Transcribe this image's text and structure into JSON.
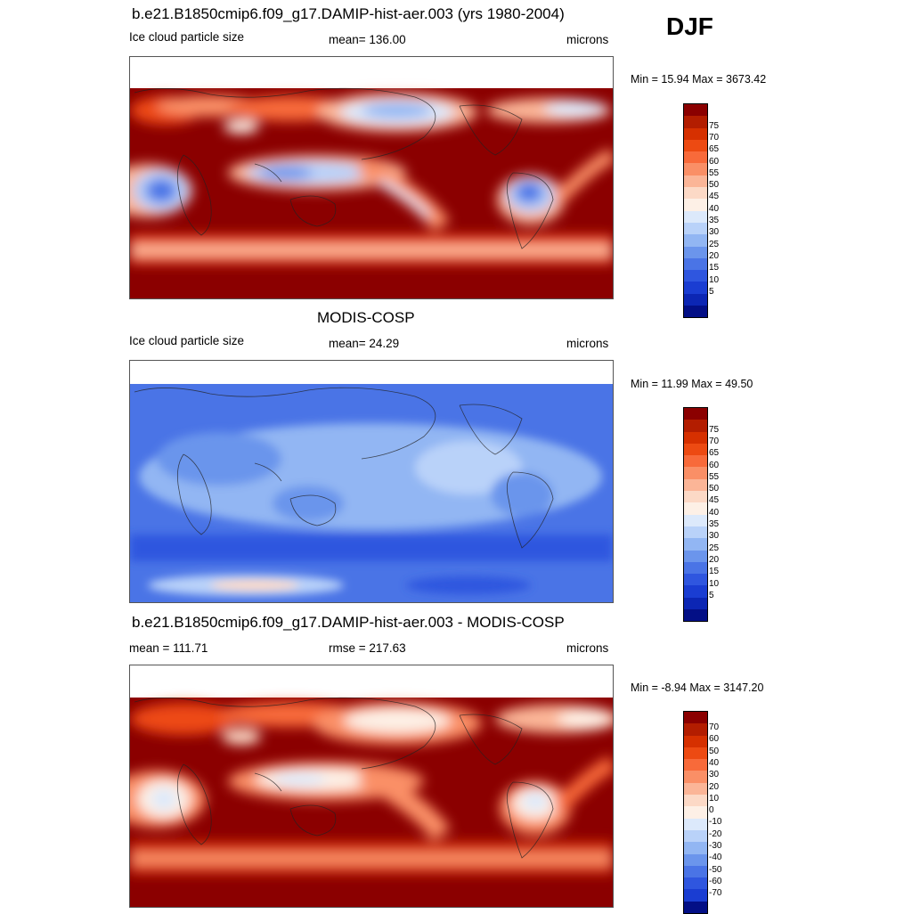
{
  "season": "DJF",
  "panels": [
    {
      "title": "b.e21.B1850cmip6.f09_g17.DAMIP-hist-aer.003 (yrs 1980-2004)",
      "left_label": "Ice cloud particle size",
      "center_label": "mean= 136.00",
      "units": "microns",
      "minmax": "Min =  15.94 Max = 3673.42",
      "colorbar": {
        "labels": [
          "75",
          "70",
          "65",
          "60",
          "55",
          "50",
          "45",
          "40",
          "35",
          "30",
          "25",
          "20",
          "15",
          "10",
          "5"
        ],
        "colors": [
          "#8b0000",
          "#b31d00",
          "#d63000",
          "#ed4a12",
          "#f86a3a",
          "#fa8f66",
          "#fbb597",
          "#fcd9c6",
          "#fdf0e6",
          "#dce9fb",
          "#b9d2f9",
          "#92b6f3",
          "#6b95ec",
          "#4a74e6",
          "#2f56df",
          "#1a3dd2",
          "#0c26b4",
          "#030f86"
        ]
      },
      "map_theme": "model"
    },
    {
      "title": "MODIS-COSP",
      "left_label": "Ice cloud particle size",
      "center_label": "mean=  24.29",
      "units": "microns",
      "minmax": "Min =  11.99 Max =  49.50",
      "colorbar": {
        "labels": [
          "75",
          "70",
          "65",
          "60",
          "55",
          "50",
          "45",
          "40",
          "35",
          "30",
          "25",
          "20",
          "15",
          "10",
          "5"
        ],
        "colors": [
          "#8b0000",
          "#b31d00",
          "#d63000",
          "#ed4a12",
          "#f86a3a",
          "#fa8f66",
          "#fbb597",
          "#fcd9c6",
          "#fdf0e6",
          "#dce9fb",
          "#b9d2f9",
          "#92b6f3",
          "#6b95ec",
          "#4a74e6",
          "#2f56df",
          "#1a3dd2",
          "#0c26b4",
          "#030f86"
        ]
      },
      "map_theme": "obs"
    },
    {
      "title": "b.e21.B1850cmip6.f09_g17.DAMIP-hist-aer.003 - MODIS-COSP",
      "left_label": "mean = 111.71",
      "center_label": "rmse = 217.63",
      "units": "microns",
      "minmax": "Min =  -8.94 Max = 3147.20",
      "colorbar": {
        "labels": [
          "70",
          "60",
          "50",
          "40",
          "30",
          "20",
          "10",
          "0",
          "-10",
          "-20",
          "-30",
          "-40",
          "-50",
          "-60",
          "-70"
        ],
        "colors": [
          "#8b0000",
          "#b31d00",
          "#d63000",
          "#ed4a12",
          "#f86a3a",
          "#fa8f66",
          "#fbb597",
          "#fcd9c6",
          "#fdf0e6",
          "#dce9fb",
          "#b9d2f9",
          "#92b6f3",
          "#6b95ec",
          "#4a74e6",
          "#2f56df",
          "#1a3dd2",
          "#030f86"
        ]
      },
      "map_theme": "diff"
    }
  ]
}
